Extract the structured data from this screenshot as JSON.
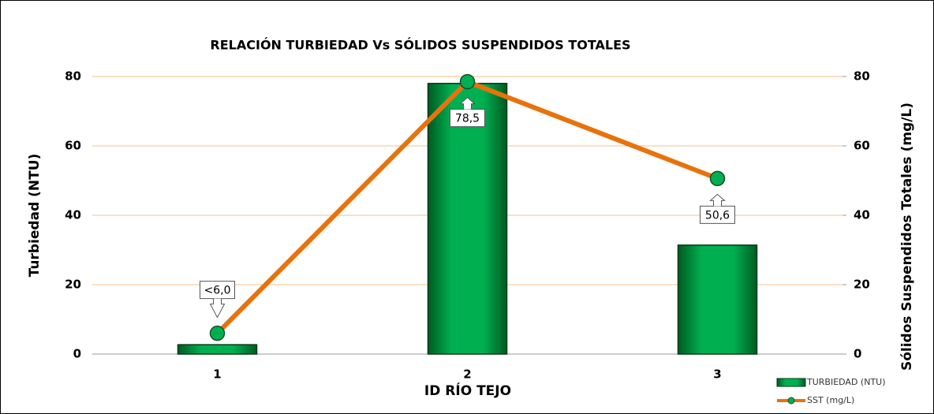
{
  "chart_data": {
    "type": "bar",
    "title": "RELACIÓN TURBIEDAD Vs SÓLIDOS SUSPENDIDOS TOTALES",
    "x_label": "ID RÍO TEJO",
    "y_label": "Turbiedad (NTU)",
    "y2_label": "Sólidos Suspendidos Totales (mg/L)",
    "categories": [
      "1",
      "2",
      "3"
    ],
    "series": [
      {
        "name": "TURBIEDAD (NTU)",
        "type": "bar",
        "color": "#00b050",
        "values": [
          2.7,
          78,
          31.4
        ]
      },
      {
        "name": "SST (mg/L)",
        "type": "line",
        "color": "#e8720c",
        "axis": "y2",
        "values": [
          6.0,
          78.5,
          50.6
        ],
        "value_labels": [
          "<6,0",
          "78,5",
          "50,6"
        ]
      }
    ],
    "ylim": [
      0,
      80
    ],
    "yticks": [
      0,
      20,
      40,
      60,
      80
    ],
    "y2lim": [
      0,
      80
    ],
    "y2ticks": [
      0,
      20,
      40,
      60,
      80
    ],
    "grid": true,
    "legend": "lower right"
  }
}
